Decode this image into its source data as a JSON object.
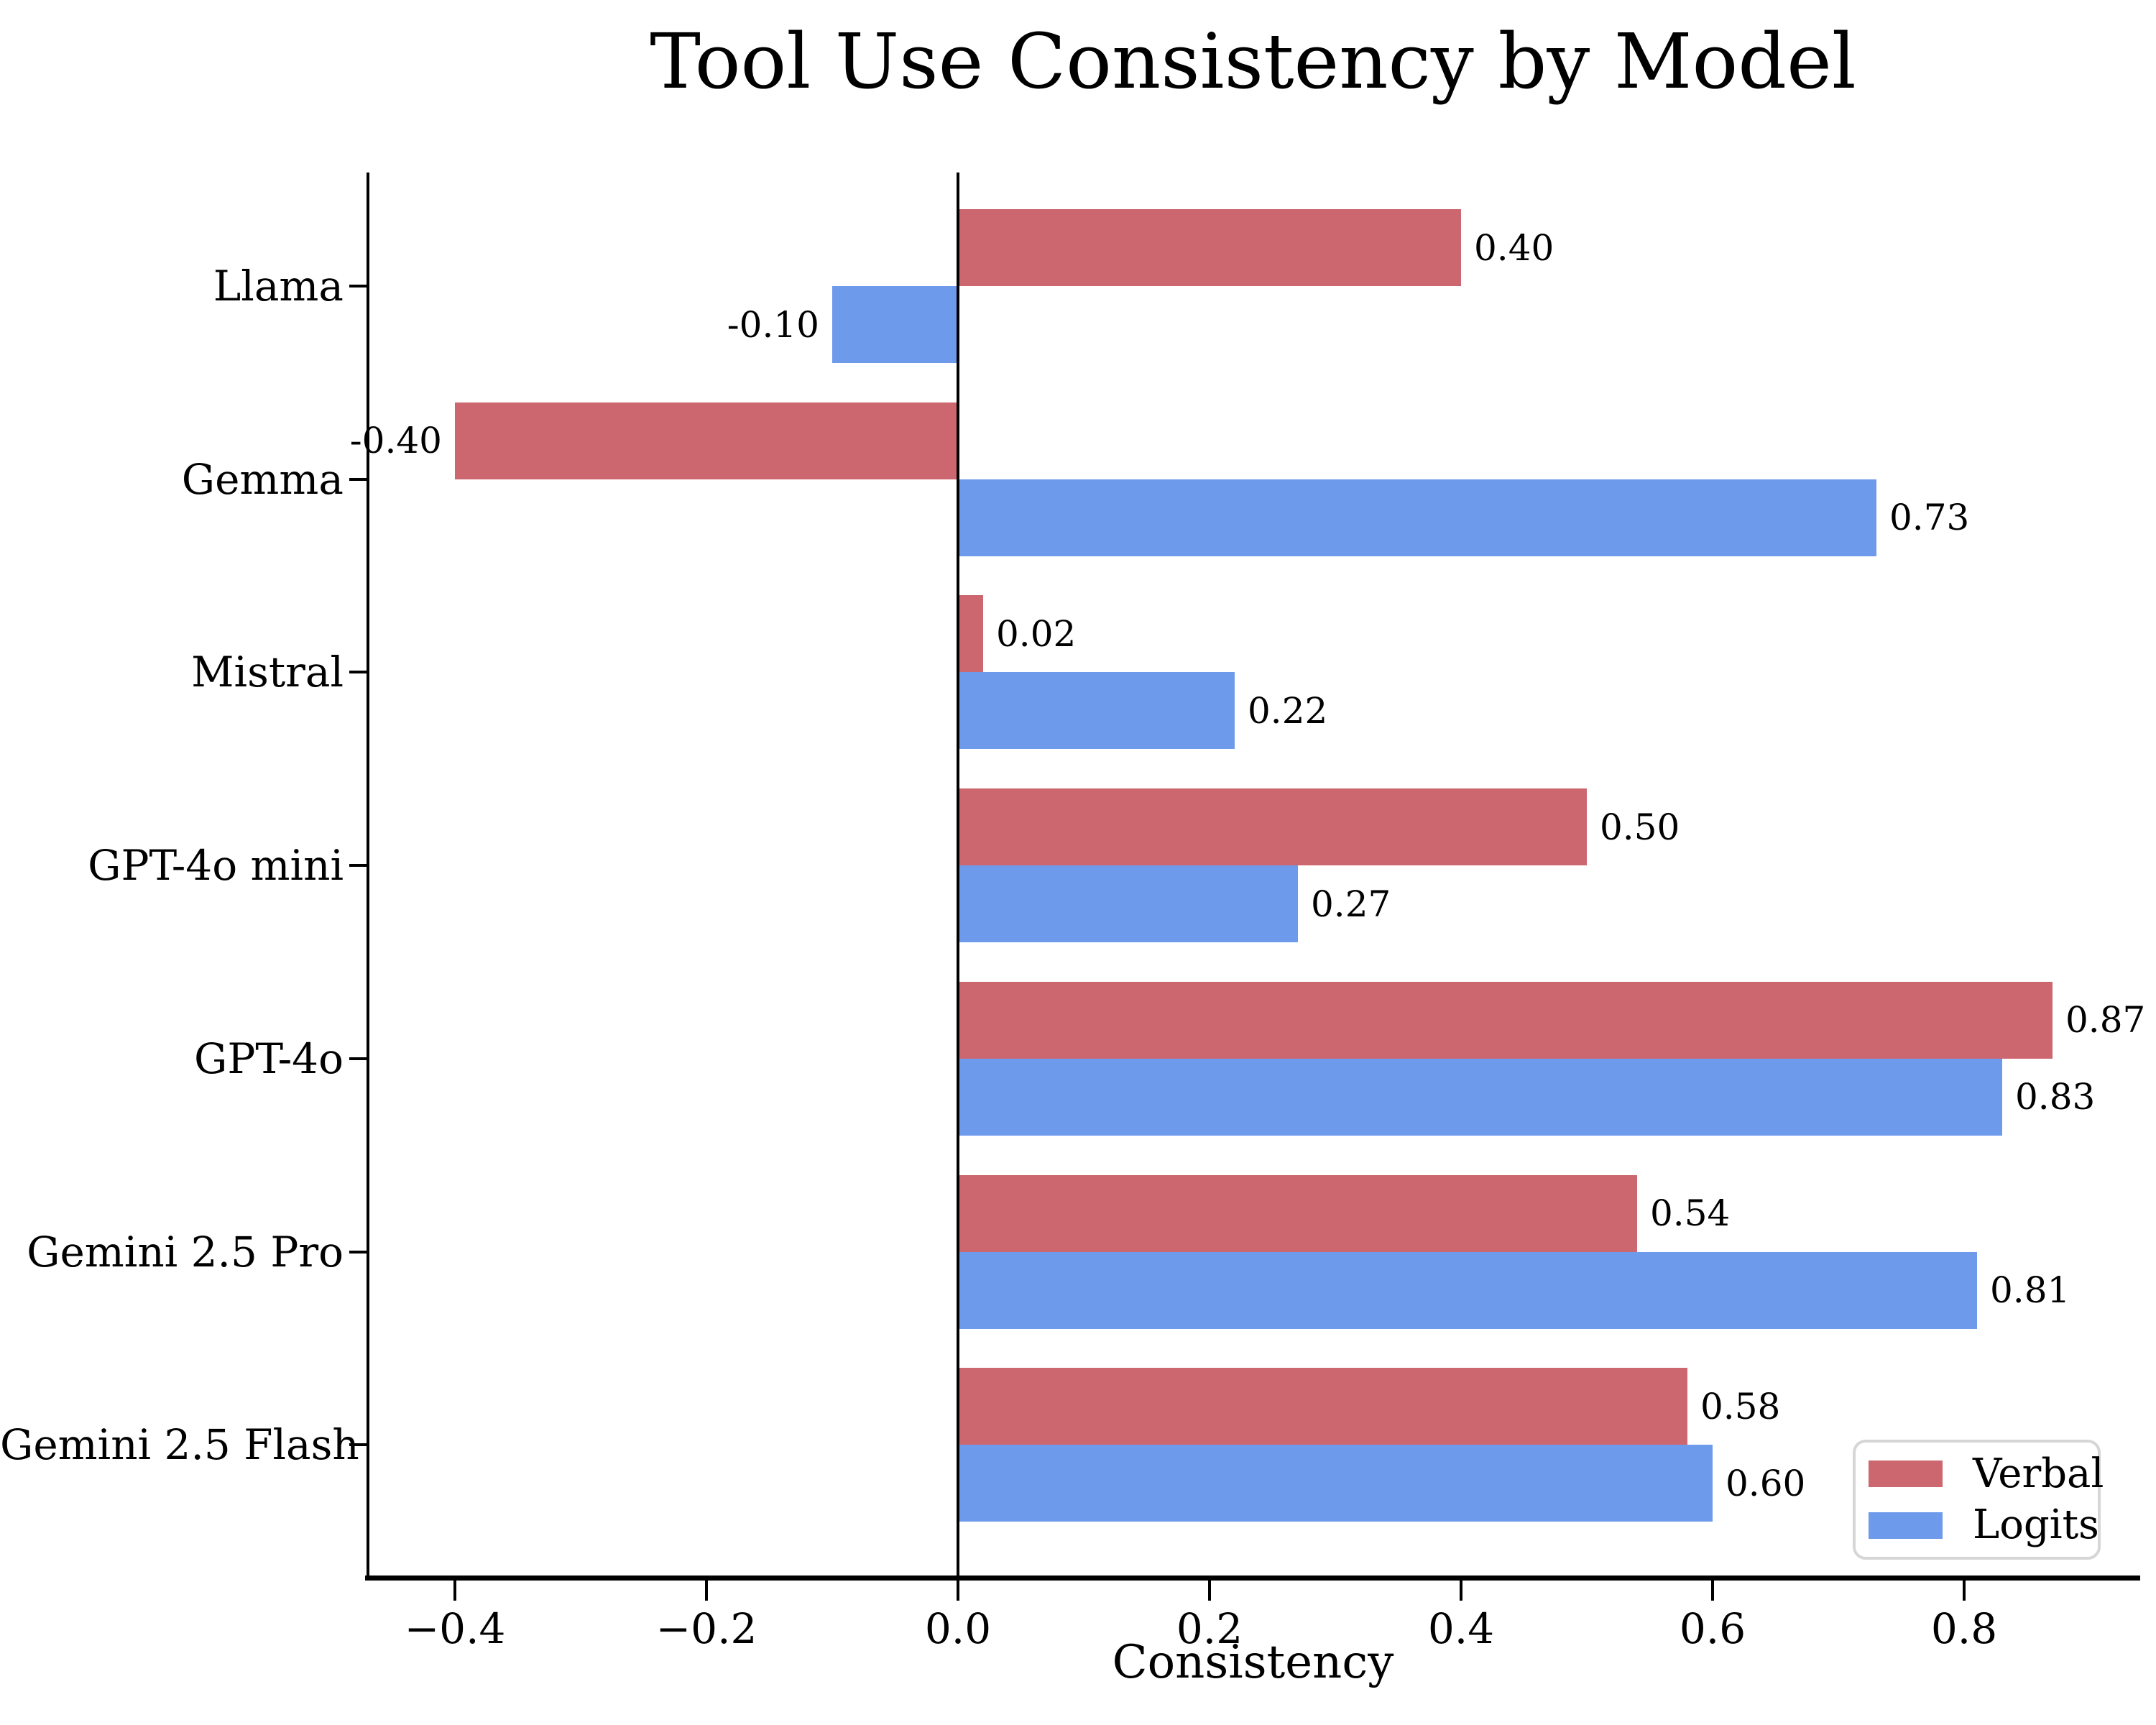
{
  "chart_data": {
    "type": "bar",
    "orientation": "horizontal",
    "title": "Tool Use Consistency by Model",
    "xlabel": "Consistency",
    "ylabel": "",
    "categories": [
      "Llama",
      "Gemma",
      "Mistral",
      "GPT-4o mini",
      "GPT-4o",
      "Gemini 2.5 Pro",
      "Gemini 2.5 Flash"
    ],
    "series": [
      {
        "name": "Verbal",
        "color": "#CD676F",
        "values": [
          0.4,
          -0.4,
          0.02,
          0.5,
          0.87,
          0.54,
          0.58
        ],
        "labels": [
          "0.40",
          "-0.40",
          "0.02",
          "0.50",
          "0.87",
          "0.54",
          "0.58"
        ]
      },
      {
        "name": "Logits",
        "color": "#6D9AEB",
        "values": [
          -0.1,
          0.73,
          0.22,
          0.27,
          0.83,
          0.81,
          0.6
        ],
        "labels": [
          "-0.10",
          "0.73",
          "0.22",
          "0.27",
          "0.83",
          "0.81",
          "0.60"
        ]
      }
    ],
    "xlim": [
      -0.469,
      0.938
    ],
    "xticks": {
      "values": [
        -0.4,
        -0.2,
        0.0,
        0.2,
        0.4,
        0.6,
        0.8
      ],
      "labels": [
        "−0.4",
        "−0.2",
        "0.0",
        "0.2",
        "0.4",
        "0.6",
        "0.8"
      ]
    },
    "legend": {
      "position": "lower right",
      "entries": [
        "Verbal",
        "Logits"
      ]
    },
    "grid": false,
    "zero_line": true
  },
  "colors": {
    "verbal": "#CD676F",
    "logits": "#6D9AEB",
    "axis": "#000000",
    "legend_border": "#D6D6D6",
    "background": "#FFFFFF"
  }
}
